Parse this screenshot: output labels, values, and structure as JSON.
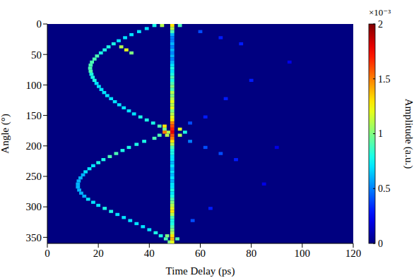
{
  "chart_data": {
    "type": "heatmap",
    "x_label": "Time Delay (ps)",
    "y_label": "Angle (°)",
    "xlim": [
      0,
      120
    ],
    "xticks": [
      0,
      20,
      40,
      60,
      80,
      100,
      120
    ],
    "ylim": [
      0,
      360
    ],
    "yticks": [
      0,
      50,
      100,
      150,
      200,
      250,
      300,
      350
    ],
    "grid": false,
    "colorbar": {
      "label": "Amplitude (a.u.)",
      "multiplier_label": "×10⁻³",
      "range": [
        0,
        0.002
      ],
      "ticks": [
        {
          "value": 0,
          "label": "0"
        },
        {
          "value": 0.0005,
          "label": "0.5"
        },
        {
          "value": 0.001,
          "label": "1"
        },
        {
          "value": 0.0015,
          "label": "1.5"
        },
        {
          "value": 0.002,
          "label": "2"
        }
      ]
    },
    "cells": [
      [
        42,
        0,
        0.0008
      ],
      [
        39,
        5,
        0.0007
      ],
      [
        36,
        10,
        0.0007
      ],
      [
        33,
        15,
        0.0007
      ],
      [
        30.5,
        20,
        0.0007
      ],
      [
        28,
        25,
        0.0007
      ],
      [
        26,
        30,
        0.0008
      ],
      [
        24,
        35,
        0.0008
      ],
      [
        22.5,
        40,
        0.0008
      ],
      [
        21,
        45,
        0.0008
      ],
      [
        19.5,
        50,
        0.0009
      ],
      [
        18.5,
        55,
        0.0009
      ],
      [
        17.5,
        60,
        0.0009
      ],
      [
        17,
        65,
        0.0009
      ],
      [
        16.8,
        70,
        0.0009
      ],
      [
        17,
        75,
        0.0009
      ],
      [
        17.3,
        80,
        0.0008
      ],
      [
        17.8,
        85,
        0.0008
      ],
      [
        18.5,
        90,
        0.0008
      ],
      [
        19.3,
        95,
        0.0007
      ],
      [
        20.2,
        100,
        0.0007
      ],
      [
        21.2,
        105,
        0.0007
      ],
      [
        22.3,
        110,
        0.0007
      ],
      [
        23.5,
        115,
        0.0007
      ],
      [
        25,
        120,
        0.0007
      ],
      [
        26.5,
        125,
        0.0007
      ],
      [
        28.2,
        130,
        0.0007
      ],
      [
        30,
        135,
        0.0007
      ],
      [
        32,
        140,
        0.0007
      ],
      [
        34,
        145,
        0.0007
      ],
      [
        36.5,
        150,
        0.0008
      ],
      [
        39,
        155,
        0.0008
      ],
      [
        41.5,
        160,
        0.0008
      ],
      [
        44,
        165,
        0.0009
      ],
      [
        46,
        170,
        0.001
      ],
      [
        47.5,
        175,
        0.0011
      ],
      [
        47,
        180,
        0.0011
      ],
      [
        42,
        185,
        0.0009
      ],
      [
        38,
        190,
        0.0008
      ],
      [
        35,
        195,
        0.0008
      ],
      [
        32,
        200,
        0.0008
      ],
      [
        29.5,
        205,
        0.0008
      ],
      [
        27,
        210,
        0.0009
      ],
      [
        24.5,
        215,
        0.0009
      ],
      [
        22,
        220,
        0.0008
      ],
      [
        20,
        225,
        0.0008
      ],
      [
        18,
        230,
        0.0007
      ],
      [
        16.5,
        235,
        0.0007
      ],
      [
        15,
        240,
        0.0007
      ],
      [
        14,
        245,
        0.0006
      ],
      [
        13,
        250,
        0.0006
      ],
      [
        12.3,
        255,
        0.0006
      ],
      [
        12,
        260,
        0.0006
      ],
      [
        12,
        265,
        0.0006
      ],
      [
        12.5,
        270,
        0.0006
      ],
      [
        13.3,
        275,
        0.0006
      ],
      [
        14.5,
        280,
        0.0006
      ],
      [
        16,
        285,
        0.0007
      ],
      [
        18,
        290,
        0.0007
      ],
      [
        20,
        295,
        0.0007
      ],
      [
        22.5,
        300,
        0.0008
      ],
      [
        25,
        305,
        0.0008
      ],
      [
        27.5,
        310,
        0.0007
      ],
      [
        30,
        315,
        0.0007
      ],
      [
        32.5,
        320,
        0.0007
      ],
      [
        35,
        325,
        0.0007
      ],
      [
        37.5,
        330,
        0.0007
      ],
      [
        40,
        335,
        0.0007
      ],
      [
        42.5,
        340,
        0.0008
      ],
      [
        44.5,
        345,
        0.0008
      ],
      [
        46.5,
        350,
        0.0009
      ],
      [
        48,
        355,
        0.001
      ],
      [
        49,
        0,
        0.0013
      ],
      [
        49,
        5,
        0.0011
      ],
      [
        49,
        10,
        0.0009
      ],
      [
        49,
        15,
        0.0006
      ],
      [
        49,
        20,
        0.0005
      ],
      [
        49,
        25,
        0.0005
      ],
      [
        49,
        30,
        0.0006
      ],
      [
        49,
        35,
        0.0005
      ],
      [
        49,
        40,
        0.0006
      ],
      [
        49,
        45,
        0.0005
      ],
      [
        49,
        50,
        0.0006
      ],
      [
        49,
        55,
        0.0005
      ],
      [
        49,
        60,
        0.0006
      ],
      [
        49,
        65,
        0.0007
      ],
      [
        49,
        70,
        0.0008
      ],
      [
        49,
        75,
        0.0007
      ],
      [
        49,
        80,
        0.0008
      ],
      [
        49,
        85,
        0.0009
      ],
      [
        49,
        90,
        0.0008
      ],
      [
        49,
        95,
        0.0009
      ],
      [
        49,
        100,
        0.001
      ],
      [
        49,
        105,
        0.0009
      ],
      [
        49,
        110,
        0.0011
      ],
      [
        49,
        115,
        0.001
      ],
      [
        49,
        120,
        0.0011
      ],
      [
        49,
        125,
        0.0012
      ],
      [
        49,
        130,
        0.0011
      ],
      [
        49,
        135,
        0.0012
      ],
      [
        49,
        140,
        0.001
      ],
      [
        49,
        145,
        0.0011
      ],
      [
        49,
        150,
        0.0012
      ],
      [
        49,
        155,
        0.0013
      ],
      [
        49,
        160,
        0.0015
      ],
      [
        49,
        165,
        0.0016
      ],
      [
        49,
        170,
        0.0017
      ],
      [
        49,
        175,
        0.0018
      ],
      [
        49,
        180,
        0.0016
      ],
      [
        49,
        185,
        0.0015
      ],
      [
        49,
        190,
        0.0013
      ],
      [
        49,
        195,
        0.0011
      ],
      [
        49,
        200,
        0.0009
      ],
      [
        49,
        205,
        0.0008
      ],
      [
        49,
        210,
        0.0008
      ],
      [
        49,
        215,
        0.0007
      ],
      [
        49,
        220,
        0.0007
      ],
      [
        49,
        225,
        0.0006
      ],
      [
        49,
        230,
        0.0007
      ],
      [
        49,
        235,
        0.0006
      ],
      [
        49,
        240,
        0.0007
      ],
      [
        49,
        245,
        0.0006
      ],
      [
        49,
        250,
        0.0007
      ],
      [
        49,
        255,
        0.0006
      ],
      [
        49,
        260,
        0.0007
      ],
      [
        49,
        265,
        0.0007
      ],
      [
        49,
        270,
        0.0008
      ],
      [
        49,
        275,
        0.0007
      ],
      [
        49,
        280,
        0.0008
      ],
      [
        49,
        285,
        0.0009
      ],
      [
        49,
        290,
        0.001
      ],
      [
        49,
        295,
        0.0011
      ],
      [
        49,
        300,
        0.0012
      ],
      [
        49,
        305,
        0.0013
      ],
      [
        49,
        310,
        0.0011
      ],
      [
        49,
        315,
        0.0009
      ],
      [
        49,
        320,
        0.0008
      ],
      [
        49,
        325,
        0.0008
      ],
      [
        49,
        330,
        0.0009
      ],
      [
        49,
        335,
        0.001
      ],
      [
        49,
        340,
        0.0011
      ],
      [
        49,
        345,
        0.0013
      ],
      [
        49,
        350,
        0.0014
      ],
      [
        49,
        355,
        0.0012
      ],
      [
        46,
        165,
        0.0013
      ],
      [
        46,
        175,
        0.0015
      ],
      [
        52,
        170,
        0.0012
      ],
      [
        52,
        180,
        0.0011
      ],
      [
        44,
        180,
        0.0009
      ],
      [
        54,
        175,
        0.0008
      ],
      [
        47,
        345,
        0.001
      ],
      [
        51,
        350,
        0.0009
      ],
      [
        45,
        0,
        0.0011
      ],
      [
        52,
        0,
        0.0009
      ],
      [
        56,
        190,
        0.0005
      ],
      [
        62,
        200,
        0.0004
      ],
      [
        68,
        210,
        0.0004
      ],
      [
        74,
        220,
        0.0003
      ],
      [
        56,
        160,
        0.0004
      ],
      [
        62,
        150,
        0.0003
      ],
      [
        57,
        320,
        0.0004
      ],
      [
        64,
        300,
        0.0003
      ],
      [
        60,
        10,
        0.0004
      ],
      [
        68,
        20,
        0.0003
      ],
      [
        76,
        30,
        0.0003
      ],
      [
        29,
        35,
        0.0011
      ],
      [
        31,
        40,
        0.0012
      ],
      [
        33,
        45,
        0.001
      ],
      [
        70,
        120,
        0.0003
      ],
      [
        80,
        90,
        0.0003
      ],
      [
        90,
        200,
        0.0002
      ],
      [
        85,
        260,
        0.0002
      ],
      [
        95,
        60,
        0.0002
      ]
    ]
  }
}
